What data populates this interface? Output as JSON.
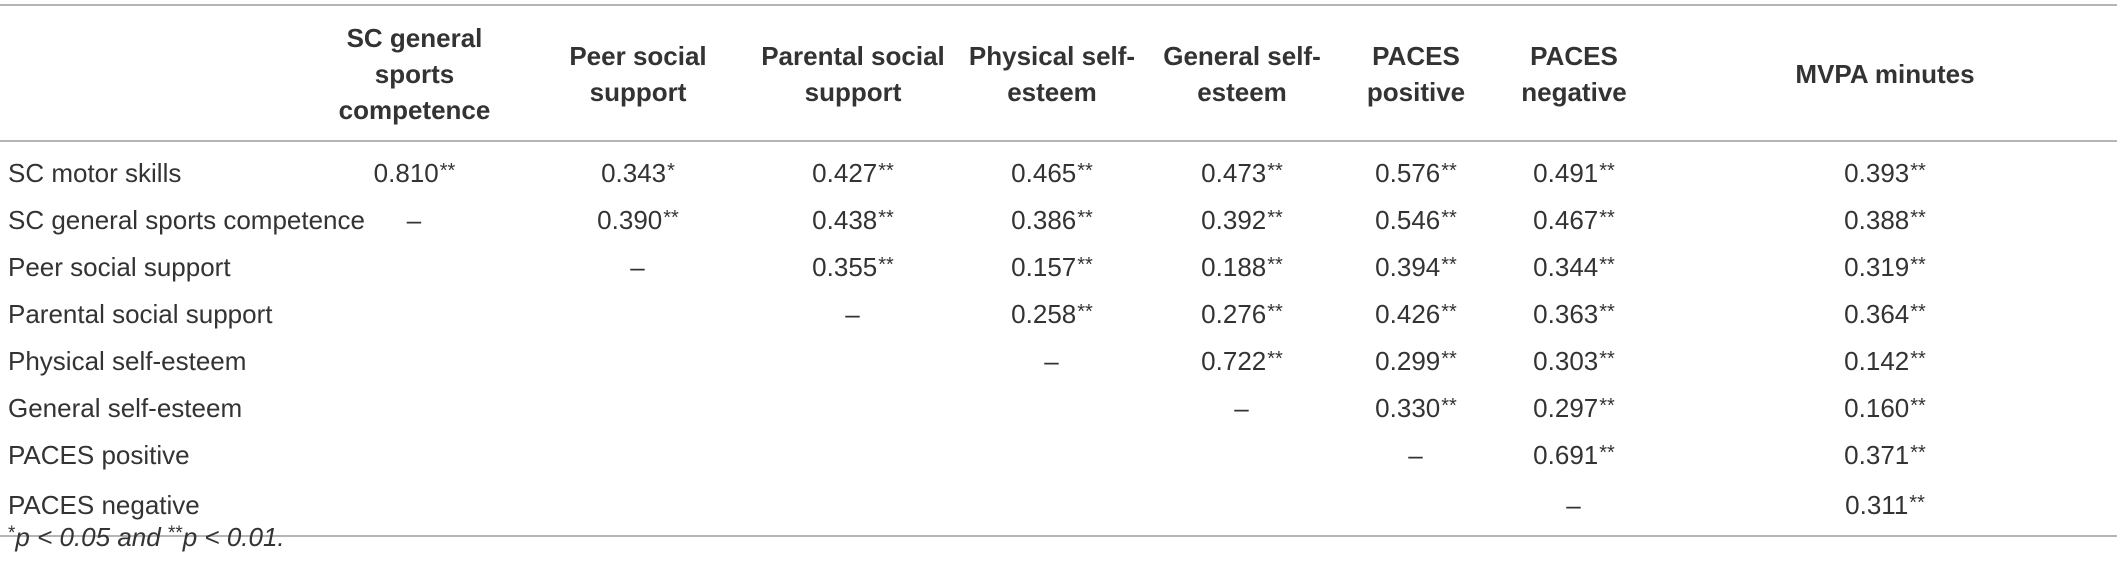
{
  "table": {
    "corner_label": "",
    "columns": [
      "SC general sports competence",
      "Peer social support",
      "Parental social support",
      "Physical self-esteem",
      "General self-esteem",
      "PACES positive",
      "PACES negative",
      "MVPA minutes"
    ],
    "rows": [
      {
        "label": "SC motor skills",
        "cells": [
          {
            "v": "0.810",
            "sig": "**"
          },
          {
            "v": "0.343",
            "sig": "*"
          },
          {
            "v": "0.427",
            "sig": "**"
          },
          {
            "v": "0.465",
            "sig": "**"
          },
          {
            "v": "0.473",
            "sig": "**"
          },
          {
            "v": "0.576",
            "sig": "**"
          },
          {
            "v": "0.491",
            "sig": "**"
          },
          {
            "v": "0.393",
            "sig": "**"
          }
        ]
      },
      {
        "label": "SC general sports competence",
        "cells": [
          {
            "v": "–",
            "sig": ""
          },
          {
            "v": "0.390",
            "sig": "**"
          },
          {
            "v": "0.438",
            "sig": "**"
          },
          {
            "v": "0.386",
            "sig": "**"
          },
          {
            "v": "0.392",
            "sig": "**"
          },
          {
            "v": "0.546",
            "sig": "**"
          },
          {
            "v": "0.467",
            "sig": "**"
          },
          {
            "v": "0.388",
            "sig": "**"
          }
        ]
      },
      {
        "label": "Peer social support",
        "cells": [
          {
            "v": "",
            "sig": ""
          },
          {
            "v": "–",
            "sig": ""
          },
          {
            "v": "0.355",
            "sig": "**"
          },
          {
            "v": "0.157",
            "sig": "**"
          },
          {
            "v": "0.188",
            "sig": "**"
          },
          {
            "v": "0.394",
            "sig": "**"
          },
          {
            "v": "0.344",
            "sig": "**"
          },
          {
            "v": "0.319",
            "sig": "**"
          }
        ]
      },
      {
        "label": "Parental social support",
        "cells": [
          {
            "v": "",
            "sig": ""
          },
          {
            "v": "",
            "sig": ""
          },
          {
            "v": "–",
            "sig": ""
          },
          {
            "v": "0.258",
            "sig": "**"
          },
          {
            "v": "0.276",
            "sig": "**"
          },
          {
            "v": "0.426",
            "sig": "**"
          },
          {
            "v": "0.363",
            "sig": "**"
          },
          {
            "v": "0.364",
            "sig": "**"
          }
        ]
      },
      {
        "label": "Physical self-esteem",
        "cells": [
          {
            "v": "",
            "sig": ""
          },
          {
            "v": "",
            "sig": ""
          },
          {
            "v": "",
            "sig": ""
          },
          {
            "v": "–",
            "sig": ""
          },
          {
            "v": "0.722",
            "sig": "**"
          },
          {
            "v": "0.299",
            "sig": "**"
          },
          {
            "v": "0.303",
            "sig": "**"
          },
          {
            "v": "0.142",
            "sig": "**"
          }
        ]
      },
      {
        "label": "General self-esteem",
        "cells": [
          {
            "v": "",
            "sig": ""
          },
          {
            "v": "",
            "sig": ""
          },
          {
            "v": "",
            "sig": ""
          },
          {
            "v": "",
            "sig": ""
          },
          {
            "v": "–",
            "sig": ""
          },
          {
            "v": "0.330",
            "sig": "**"
          },
          {
            "v": "0.297",
            "sig": "**"
          },
          {
            "v": "0.160",
            "sig": "**"
          }
        ]
      },
      {
        "label": "PACES positive",
        "cells": [
          {
            "v": "",
            "sig": ""
          },
          {
            "v": "",
            "sig": ""
          },
          {
            "v": "",
            "sig": ""
          },
          {
            "v": "",
            "sig": ""
          },
          {
            "v": "",
            "sig": ""
          },
          {
            "v": "–",
            "sig": ""
          },
          {
            "v": "0.691",
            "sig": "**"
          },
          {
            "v": "0.371",
            "sig": "**"
          }
        ]
      },
      {
        "label": "PACES negative",
        "cells": [
          {
            "v": "",
            "sig": ""
          },
          {
            "v": "",
            "sig": ""
          },
          {
            "v": "",
            "sig": ""
          },
          {
            "v": "",
            "sig": ""
          },
          {
            "v": "",
            "sig": ""
          },
          {
            "v": "",
            "sig": ""
          },
          {
            "v": "–",
            "sig": ""
          },
          {
            "v": "0.311",
            "sig": "**"
          }
        ]
      }
    ]
  },
  "footnote": {
    "sig1_mark": "*",
    "sig1_text": "p < 0.05 and ",
    "sig2_mark": "**",
    "sig2_text": "p < 0.01."
  }
}
